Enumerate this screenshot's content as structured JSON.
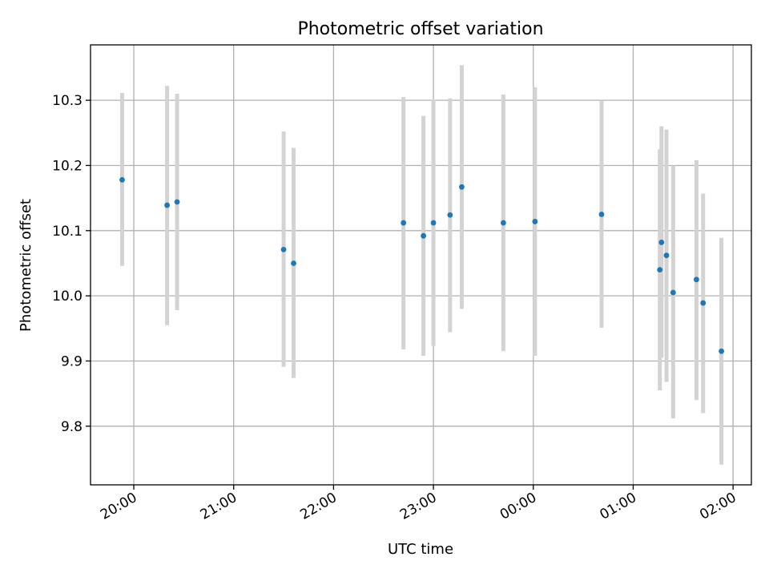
{
  "chart_data": {
    "type": "scatter",
    "title": "Photometric offset variation",
    "xlabel": "UTC time",
    "ylabel": "Photometric offset",
    "grid": true,
    "x_axis": {
      "ticks": [
        "20:00",
        "21:00",
        "22:00",
        "23:00",
        "00:00",
        "01:00",
        "02:00"
      ],
      "range": [
        "19:34",
        "02:11"
      ]
    },
    "y_axis": {
      "ticks": [
        "9.8",
        "9.9",
        "10.0",
        "10.1",
        "10.2",
        "10.3"
      ],
      "range": [
        9.71,
        10.385
      ]
    },
    "colors": {
      "marker": "#1f77b4",
      "errorbar": "#d3d3d3",
      "grid": "#b0b0b0"
    },
    "points": [
      {
        "time": "19:53",
        "y": 10.178,
        "err_low": 10.046,
        "err_high": 10.311
      },
      {
        "time": "20:20",
        "y": 10.139,
        "err_low": 9.955,
        "err_high": 10.322
      },
      {
        "time": "20:26",
        "y": 10.144,
        "err_low": 9.978,
        "err_high": 10.31
      },
      {
        "time": "21:30",
        "y": 10.071,
        "err_low": 9.891,
        "err_high": 10.252
      },
      {
        "time": "21:36",
        "y": 10.05,
        "err_low": 9.874,
        "err_high": 10.227
      },
      {
        "time": "22:42",
        "y": 10.112,
        "err_low": 9.918,
        "err_high": 10.305
      },
      {
        "time": "22:54",
        "y": 10.092,
        "err_low": 9.908,
        "err_high": 10.276
      },
      {
        "time": "23:00",
        "y": 10.112,
        "err_low": 9.923,
        "err_high": 10.301
      },
      {
        "time": "23:10",
        "y": 10.124,
        "err_low": 9.944,
        "err_high": 10.303
      },
      {
        "time": "23:17",
        "y": 10.167,
        "err_low": 9.98,
        "err_high": 10.354
      },
      {
        "time": "23:42",
        "y": 10.112,
        "err_low": 9.915,
        "err_high": 10.309
      },
      {
        "time": "00:01",
        "y": 10.114,
        "err_low": 9.908,
        "err_high": 10.32
      },
      {
        "time": "00:41",
        "y": 10.125,
        "err_low": 9.951,
        "err_high": 10.299
      },
      {
        "time": "01:16",
        "y": 10.04,
        "err_low": 9.855,
        "err_high": 10.225
      },
      {
        "time": "01:17",
        "y": 10.082,
        "err_low": 9.905,
        "err_high": 10.26
      },
      {
        "time": "01:20",
        "y": 10.062,
        "err_low": 9.868,
        "err_high": 10.255
      },
      {
        "time": "01:24",
        "y": 10.005,
        "err_low": 9.812,
        "err_high": 10.2
      },
      {
        "time": "01:38",
        "y": 10.025,
        "err_low": 9.84,
        "err_high": 10.208
      },
      {
        "time": "01:42",
        "y": 9.989,
        "err_low": 9.82,
        "err_high": 10.157
      },
      {
        "time": "01:53",
        "y": 9.915,
        "err_low": 9.741,
        "err_high": 10.089
      }
    ]
  }
}
